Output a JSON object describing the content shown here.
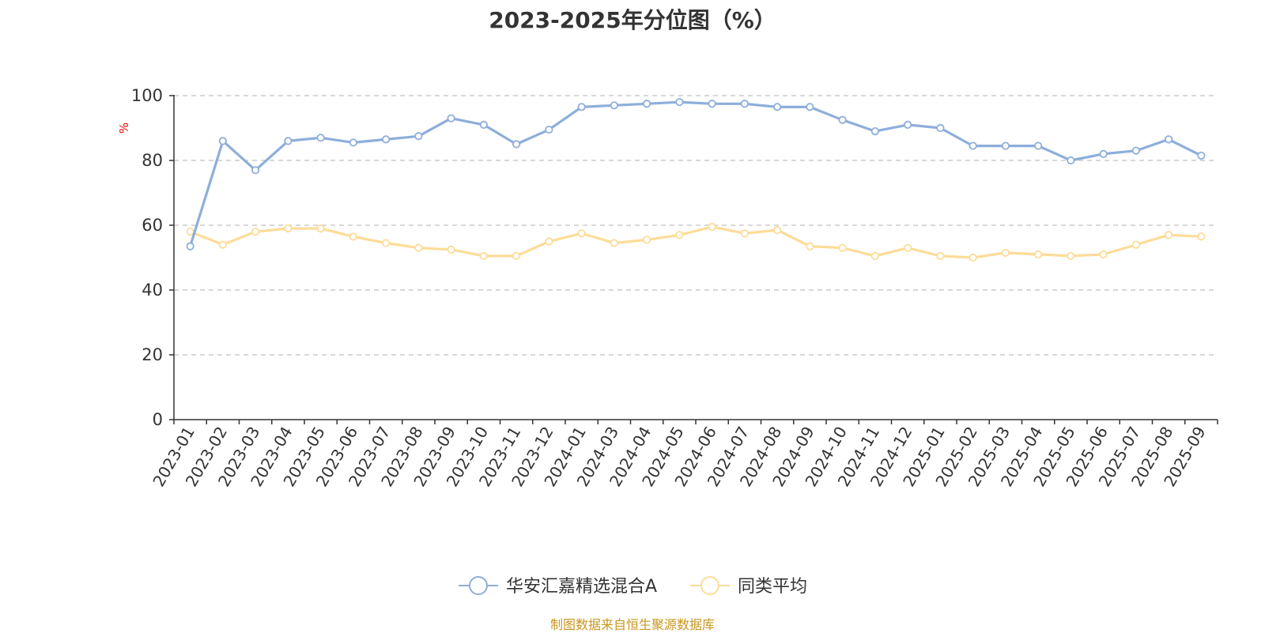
{
  "chart_data": {
    "type": "line",
    "title": "2023-2025年分位图（%）",
    "ylabel": "%",
    "ylim": [
      0,
      100
    ],
    "y_ticks": [
      0,
      20,
      40,
      60,
      80,
      100
    ],
    "categories": [
      "2023-01",
      "2023-02",
      "2023-03",
      "2023-04",
      "2023-05",
      "2023-06",
      "2023-07",
      "2023-08",
      "2023-09",
      "2023-10",
      "2023-11",
      "2023-12",
      "2024-01",
      "2024-03",
      "2024-04",
      "2024-05",
      "2024-06",
      "2024-07",
      "2024-08",
      "2024-09",
      "2024-10",
      "2024-11",
      "2024-12",
      "2025-01",
      "2025-02",
      "2025-03",
      "2025-04",
      "2025-05",
      "2025-06",
      "2025-07",
      "2025-08",
      "2025-09"
    ],
    "series": [
      {
        "name": "华安汇嘉精选混合A",
        "color": "#8eaedb",
        "values": [
          53.5,
          86,
          77,
          86,
          87,
          85.5,
          86.5,
          87.5,
          93,
          91,
          85,
          89.5,
          96.5,
          97,
          97.5,
          98,
          97.5,
          97.5,
          96.5,
          96.5,
          92.5,
          89,
          91,
          90,
          84.5,
          84.5,
          84.5,
          80,
          82,
          83,
          86.5,
          81.5
        ]
      },
      {
        "name": "同类平均",
        "color": "#fddc98",
        "values": [
          58,
          54,
          58,
          59,
          59,
          56.5,
          54.5,
          53,
          52.5,
          50.5,
          50.5,
          55,
          57.5,
          54.5,
          55.5,
          57,
          59.5,
          57.5,
          58.5,
          53.5,
          53,
          50.5,
          53,
          50.5,
          50,
          51.5,
          51,
          50.5,
          51,
          54,
          57,
          56.5
        ]
      }
    ],
    "grid": true,
    "legend_position": "bottom-center"
  },
  "source_note": "制图数据来自恒生聚源数据库",
  "colors": {
    "axis": "#333333",
    "grid": "#cccccc",
    "ylabel": "#ff0000",
    "source_note": "#c8961e"
  }
}
